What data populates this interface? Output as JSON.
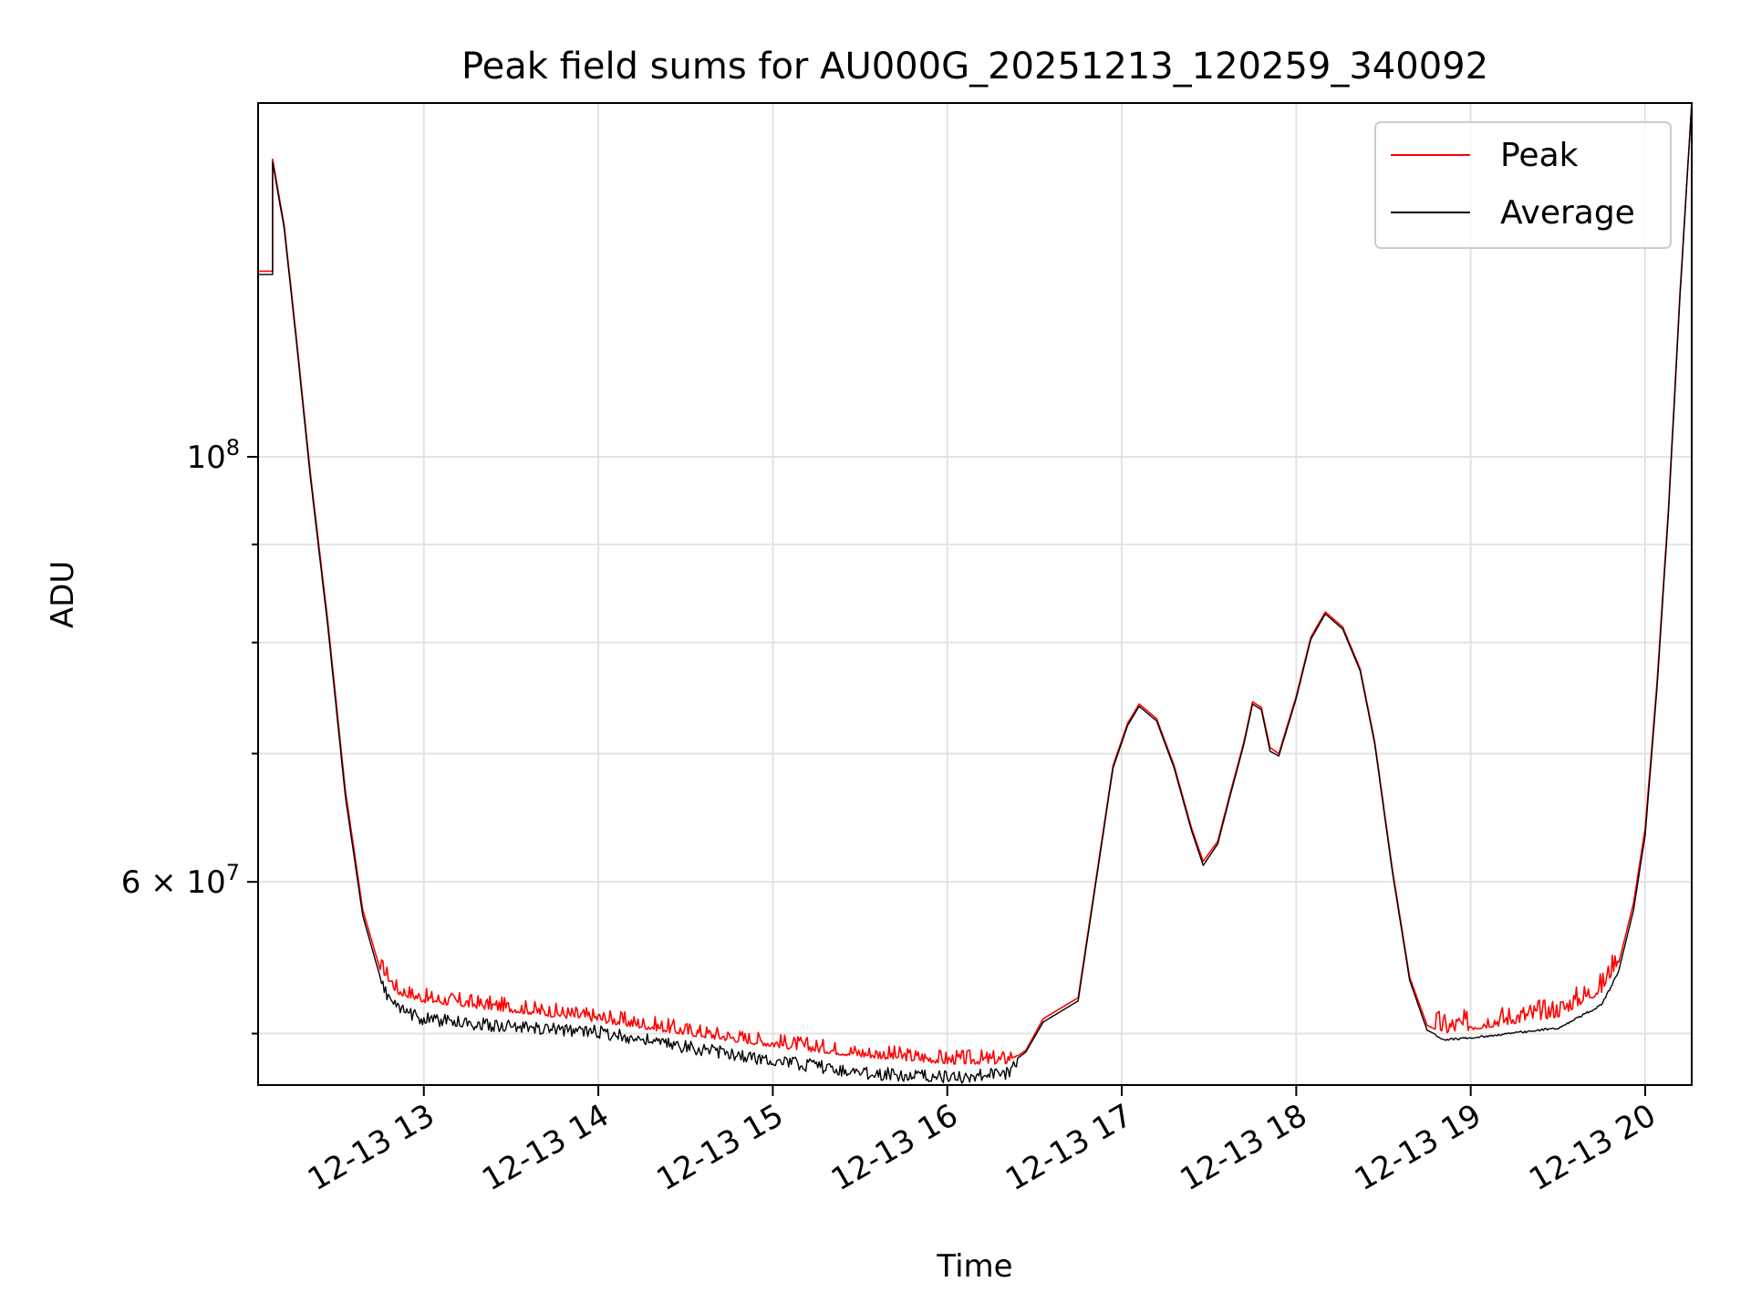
{
  "chart_data": {
    "type": "line",
    "title": "Peak field sums for AU000G_20251213_120259_340092",
    "xlabel": "Time",
    "ylabel": "ADU",
    "yscale": "log",
    "xlim": [
      "12-13 12:03",
      "12-13 20:16"
    ],
    "ylim": [
      47000000,
      153000000
    ],
    "grid": true,
    "legend_position": "top-right",
    "x_ticks": [
      "12-13 13",
      "12-13 14",
      "12-13 15",
      "12-13 16",
      "12-13 17",
      "12-13 18",
      "12-13 19",
      "12-13 20"
    ],
    "x_tick_times": [
      "12-13 13:00",
      "12-13 14:00",
      "12-13 15:00",
      "12-13 16:00",
      "12-13 17:00",
      "12-13 18:00",
      "12-13 19:00",
      "12-13 20:00"
    ],
    "y_major_ticks": [
      {
        "value": 60000000,
        "mantissa": "6",
        "exp": "7"
      },
      {
        "value": 100000000,
        "mantissa": "",
        "exp": "8"
      }
    ],
    "y_minor_ticks": [
      50000000,
      70000000,
      80000000,
      90000000
    ],
    "series": [
      {
        "name": "Peak",
        "color": "#ff0000",
        "points": [
          [
            "12-13 12:03",
            125000000
          ],
          [
            "12-13 12:08",
            125000000
          ],
          [
            "12-13 12:08",
            143000000
          ],
          [
            "12-13 12:12",
            132000000
          ],
          [
            "12-13 12:16",
            116000000
          ],
          [
            "12-13 12:21",
            98000000
          ],
          [
            "12-13 12:27",
            82000000
          ],
          [
            "12-13 12:33",
            67000000
          ],
          [
            "12-13 12:39",
            58000000
          ],
          [
            "12-13 12:45",
            54000000
          ],
          [
            "12-13 12:51",
            52400000
          ],
          [
            "12-13 13:00",
            51900000
          ],
          [
            "12-13 13:30",
            51300000
          ],
          [
            "12-13 14:00",
            50700000
          ],
          [
            "12-13 14:30",
            49900000
          ],
          [
            "12-13 15:00",
            49200000
          ],
          [
            "12-13 15:30",
            48600000
          ],
          [
            "12-13 16:00",
            48200000
          ],
          [
            "12-13 16:20",
            48200000
          ],
          [
            "12-13 16:27",
            49000000
          ],
          [
            "12-13 16:33",
            50900000
          ],
          [
            "12-13 16:45",
            52200000
          ],
          [
            "12-13 16:51",
            60000000
          ],
          [
            "12-13 16:57",
            69000000
          ],
          [
            "12-13 17:02",
            72600000
          ],
          [
            "12-13 17:06",
            74300000
          ],
          [
            "12-13 17:12",
            73000000
          ],
          [
            "12-13 17:18",
            69000000
          ],
          [
            "12-13 17:24",
            64000000
          ],
          [
            "12-13 17:28",
            61500000
          ],
          [
            "12-13 17:33",
            63000000
          ],
          [
            "12-13 17:37",
            66500000
          ],
          [
            "12-13 17:42",
            71000000
          ],
          [
            "12-13 17:45",
            74500000
          ],
          [
            "12-13 17:48",
            74000000
          ],
          [
            "12-13 17:51",
            70500000
          ],
          [
            "12-13 17:54",
            70000000
          ],
          [
            "12-13 18:00",
            75000000
          ],
          [
            "12-13 18:05",
            80500000
          ],
          [
            "12-13 18:10",
            83000000
          ],
          [
            "12-13 18:16",
            81500000
          ],
          [
            "12-13 18:22",
            77500000
          ],
          [
            "12-13 18:27",
            71000000
          ],
          [
            "12-13 18:33",
            61000000
          ],
          [
            "12-13 18:39",
            53500000
          ],
          [
            "12-13 18:45",
            50500000
          ],
          [
            "12-13 18:51",
            50000000
          ],
          [
            "12-13 19:00",
            50200000
          ],
          [
            "12-13 19:15",
            50600000
          ],
          [
            "12-13 19:30",
            51000000
          ],
          [
            "12-13 19:45",
            52500000
          ],
          [
            "12-13 19:51",
            54500000
          ],
          [
            "12-13 19:56",
            58500000
          ],
          [
            "12-13 20:00",
            64000000
          ],
          [
            "12-13 20:04",
            76000000
          ],
          [
            "12-13 20:08",
            94000000
          ],
          [
            "12-13 20:12",
            122000000
          ],
          [
            "12-13 20:16",
            153000000
          ]
        ]
      },
      {
        "name": "Average",
        "color": "#000000",
        "points": [
          [
            "12-13 12:03",
            124500000
          ],
          [
            "12-13 12:08",
            124500000
          ],
          [
            "12-13 12:08",
            142500000
          ],
          [
            "12-13 12:12",
            131500000
          ],
          [
            "12-13 12:16",
            115500000
          ],
          [
            "12-13 12:21",
            97500000
          ],
          [
            "12-13 12:27",
            81500000
          ],
          [
            "12-13 12:33",
            66500000
          ],
          [
            "12-13 12:39",
            57600000
          ],
          [
            "12-13 12:45",
            53500000
          ],
          [
            "12-13 12:51",
            51900000
          ],
          [
            "12-13 13:00",
            51300000
          ],
          [
            "12-13 13:30",
            50800000
          ],
          [
            "12-13 14:00",
            50500000
          ],
          [
            "12-13 14:30",
            49600000
          ],
          [
            "12-13 15:00",
            48800000
          ],
          [
            "12-13 15:30",
            48100000
          ],
          [
            "12-13 16:00",
            47800000
          ],
          [
            "12-13 16:20",
            48000000
          ],
          [
            "12-13 16:27",
            48900000
          ],
          [
            "12-13 16:33",
            50700000
          ],
          [
            "12-13 16:45",
            52000000
          ],
          [
            "12-13 16:51",
            59800000
          ],
          [
            "12-13 16:57",
            68800000
          ],
          [
            "12-13 17:02",
            72400000
          ],
          [
            "12-13 17:06",
            74100000
          ],
          [
            "12-13 17:12",
            72800000
          ],
          [
            "12-13 17:18",
            68800000
          ],
          [
            "12-13 17:24",
            63800000
          ],
          [
            "12-13 17:28",
            61200000
          ],
          [
            "12-13 17:33",
            62800000
          ],
          [
            "12-13 17:37",
            66300000
          ],
          [
            "12-13 17:42",
            70800000
          ],
          [
            "12-13 17:45",
            74300000
          ],
          [
            "12-13 17:48",
            73800000
          ],
          [
            "12-13 17:51",
            70200000
          ],
          [
            "12-13 17:54",
            69800000
          ],
          [
            "12-13 18:00",
            74800000
          ],
          [
            "12-13 18:05",
            80300000
          ],
          [
            "12-13 18:10",
            82800000
          ],
          [
            "12-13 18:16",
            81300000
          ],
          [
            "12-13 18:22",
            77300000
          ],
          [
            "12-13 18:27",
            70800000
          ],
          [
            "12-13 18:33",
            60800000
          ],
          [
            "12-13 18:39",
            53300000
          ],
          [
            "12-13 18:45",
            50200000
          ],
          [
            "12-13 18:51",
            49700000
          ],
          [
            "12-13 19:00",
            49800000
          ],
          [
            "12-13 19:15",
            50100000
          ],
          [
            "12-13 19:30",
            50400000
          ],
          [
            "12-13 19:45",
            51800000
          ],
          [
            "12-13 19:51",
            54000000
          ],
          [
            "12-13 19:56",
            58000000
          ],
          [
            "12-13 20:00",
            63500000
          ],
          [
            "12-13 20:04",
            75500000
          ],
          [
            "12-13 20:08",
            93500000
          ],
          [
            "12-13 20:12",
            121500000
          ],
          [
            "12-13 20:16",
            153000000
          ]
        ]
      }
    ]
  }
}
